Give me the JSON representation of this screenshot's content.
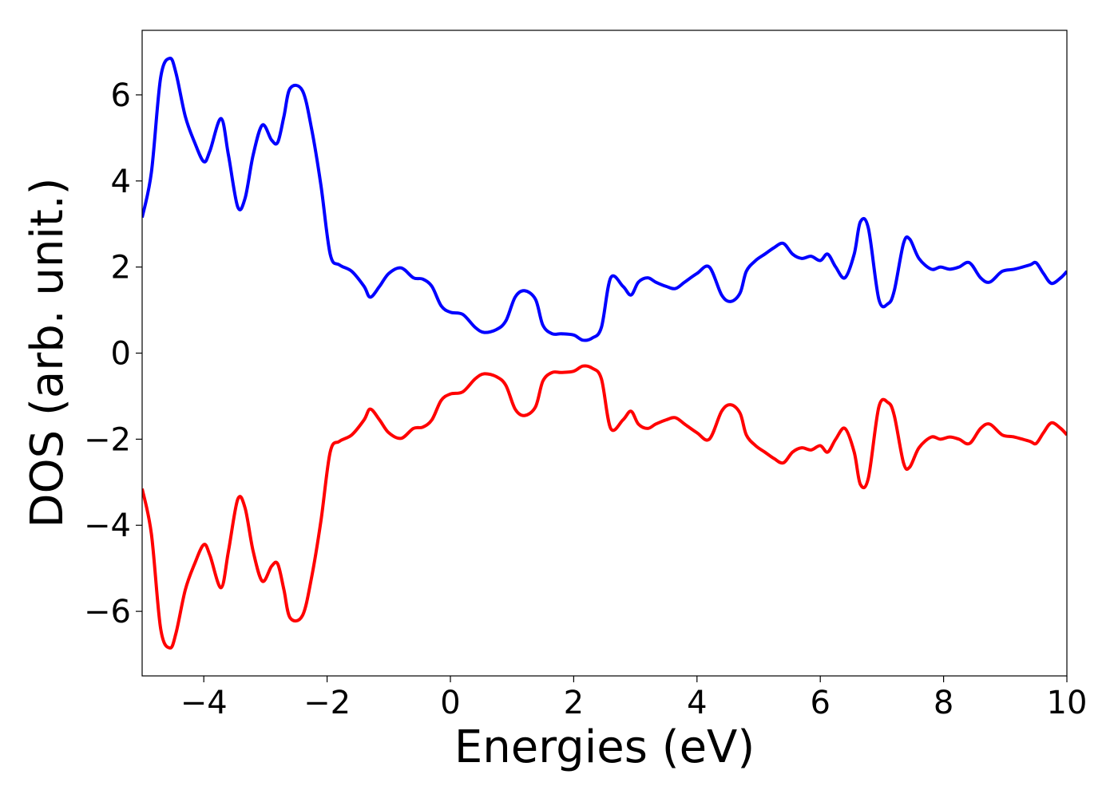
{
  "chart_data": {
    "type": "line",
    "title": "",
    "xlabel": "Energies (eV)",
    "ylabel": "DOS (arb. unit.)",
    "xlim": [
      -5,
      10
    ],
    "ylim": [
      -7.5,
      7.5
    ],
    "xticks": [
      -4,
      -2,
      0,
      2,
      4,
      6,
      8,
      10
    ],
    "xtick_labels": [
      "−4",
      "−2",
      "0",
      "2",
      "4",
      "6",
      "8",
      "10"
    ],
    "yticks": [
      -6,
      -4,
      -2,
      0,
      2,
      4,
      6
    ],
    "ytick_labels": [
      "−6",
      "−4",
      "−2",
      "0",
      "2",
      "4",
      "6"
    ],
    "grid": false,
    "legend": "none",
    "series": [
      {
        "color": "#0000ff",
        "x": [
          -5.0,
          -4.85,
          -4.7,
          -4.55,
          -4.45,
          -4.3,
          -4.15,
          -4.0,
          -3.9,
          -3.72,
          -3.6,
          -3.45,
          -3.33,
          -3.2,
          -3.05,
          -2.9,
          -2.8,
          -2.7,
          -2.6,
          -2.4,
          -2.25,
          -2.1,
          -1.95,
          -1.8,
          -1.6,
          -1.4,
          -1.3,
          -1.15,
          -1.0,
          -0.8,
          -0.6,
          -0.45,
          -0.3,
          -0.15,
          0.0,
          0.2,
          0.4,
          0.55,
          0.75,
          0.9,
          1.05,
          1.2,
          1.38,
          1.5,
          1.65,
          1.8,
          2.0,
          2.15,
          2.3,
          2.45,
          2.6,
          2.8,
          2.93,
          3.05,
          3.2,
          3.33,
          3.5,
          3.65,
          3.8,
          4.0,
          4.2,
          4.4,
          4.55,
          4.7,
          4.8,
          4.95,
          5.1,
          5.25,
          5.4,
          5.55,
          5.7,
          5.85,
          6.0,
          6.12,
          6.25,
          6.4,
          6.55,
          6.65,
          6.78,
          6.95,
          7.1,
          7.2,
          7.35,
          7.45,
          7.6,
          7.8,
          7.95,
          8.1,
          8.25,
          8.42,
          8.6,
          8.75,
          8.95,
          9.15,
          9.4,
          9.5,
          9.62,
          9.75,
          9.9,
          10.0
        ],
        "y": [
          3.15,
          4.2,
          6.4,
          6.85,
          6.5,
          5.5,
          4.9,
          4.45,
          4.7,
          5.45,
          4.6,
          3.4,
          3.6,
          4.6,
          5.3,
          4.95,
          4.9,
          5.5,
          6.15,
          6.1,
          5.2,
          3.9,
          2.3,
          2.05,
          1.9,
          1.55,
          1.3,
          1.55,
          1.85,
          1.98,
          1.75,
          1.72,
          1.55,
          1.1,
          0.95,
          0.9,
          0.6,
          0.48,
          0.55,
          0.75,
          1.3,
          1.45,
          1.25,
          0.65,
          0.45,
          0.45,
          0.42,
          0.3,
          0.35,
          0.6,
          1.75,
          1.55,
          1.35,
          1.65,
          1.75,
          1.65,
          1.55,
          1.5,
          1.65,
          1.85,
          2.0,
          1.35,
          1.2,
          1.4,
          1.9,
          2.15,
          2.3,
          2.45,
          2.55,
          2.3,
          2.2,
          2.25,
          2.15,
          2.3,
          2.0,
          1.75,
          2.3,
          3.05,
          2.9,
          1.25,
          1.15,
          1.45,
          2.55,
          2.65,
          2.2,
          1.95,
          2.0,
          1.95,
          2.0,
          2.1,
          1.75,
          1.65,
          1.9,
          1.95,
          2.05,
          2.1,
          1.85,
          1.62,
          1.75,
          1.9
        ]
      },
      {
        "color": "#ff0000",
        "x": [
          -5.0,
          -4.85,
          -4.7,
          -4.55,
          -4.45,
          -4.3,
          -4.15,
          -4.0,
          -3.9,
          -3.72,
          -3.6,
          -3.45,
          -3.33,
          -3.2,
          -3.05,
          -2.9,
          -2.8,
          -2.7,
          -2.6,
          -2.4,
          -2.25,
          -2.1,
          -1.95,
          -1.8,
          -1.6,
          -1.4,
          -1.3,
          -1.15,
          -1.0,
          -0.8,
          -0.6,
          -0.45,
          -0.3,
          -0.15,
          0.0,
          0.2,
          0.4,
          0.55,
          0.75,
          0.9,
          1.05,
          1.2,
          1.38,
          1.5,
          1.65,
          1.8,
          2.0,
          2.15,
          2.3,
          2.45,
          2.6,
          2.8,
          2.93,
          3.05,
          3.2,
          3.33,
          3.5,
          3.65,
          3.8,
          4.0,
          4.2,
          4.4,
          4.55,
          4.7,
          4.8,
          4.95,
          5.1,
          5.25,
          5.4,
          5.55,
          5.7,
          5.85,
          6.0,
          6.12,
          6.25,
          6.4,
          6.55,
          6.65,
          6.78,
          6.95,
          7.1,
          7.2,
          7.35,
          7.45,
          7.6,
          7.8,
          7.95,
          8.1,
          8.25,
          8.42,
          8.6,
          8.75,
          8.95,
          9.15,
          9.4,
          9.5,
          9.62,
          9.75,
          9.9,
          10.0
        ],
        "y": [
          -3.15,
          -4.2,
          -6.4,
          -6.85,
          -6.5,
          -5.5,
          -4.9,
          -4.45,
          -4.7,
          -5.45,
          -4.6,
          -3.4,
          -3.6,
          -4.6,
          -5.3,
          -4.95,
          -4.9,
          -5.5,
          -6.15,
          -6.1,
          -5.2,
          -3.9,
          -2.3,
          -2.05,
          -1.9,
          -1.55,
          -1.3,
          -1.55,
          -1.85,
          -1.98,
          -1.75,
          -1.72,
          -1.55,
          -1.1,
          -0.95,
          -0.9,
          -0.6,
          -0.48,
          -0.55,
          -0.75,
          -1.3,
          -1.45,
          -1.25,
          -0.65,
          -0.45,
          -0.45,
          -0.42,
          -0.3,
          -0.35,
          -0.6,
          -1.75,
          -1.55,
          -1.35,
          -1.65,
          -1.75,
          -1.65,
          -1.55,
          -1.5,
          -1.65,
          -1.85,
          -2.0,
          -1.35,
          -1.2,
          -1.4,
          -1.9,
          -2.15,
          -2.3,
          -2.45,
          -2.55,
          -2.3,
          -2.2,
          -2.25,
          -2.15,
          -2.3,
          -2.0,
          -1.75,
          -2.3,
          -3.05,
          -2.9,
          -1.25,
          -1.15,
          -1.45,
          -2.55,
          -2.65,
          -2.2,
          -1.95,
          -2.0,
          -1.95,
          -2.0,
          -2.1,
          -1.75,
          -1.65,
          -1.9,
          -1.95,
          -2.05,
          -2.1,
          -1.85,
          -1.62,
          -1.75,
          -1.9
        ]
      }
    ]
  }
}
